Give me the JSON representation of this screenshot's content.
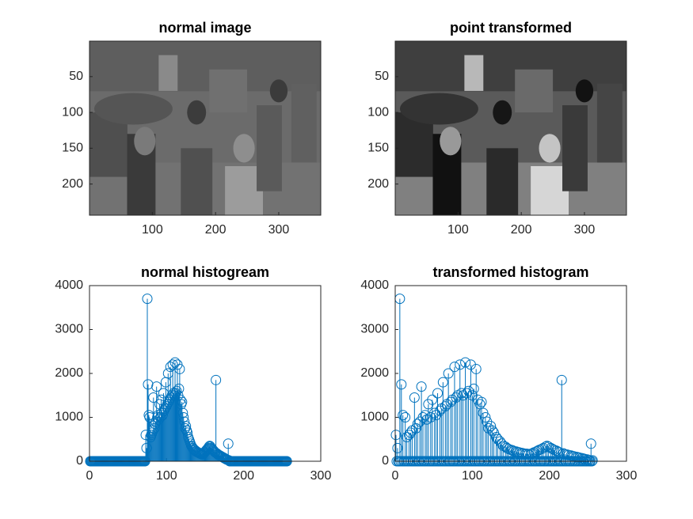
{
  "chart_data": [
    {
      "type": "image",
      "title": "normal image",
      "xlim": [
        0.5,
        366.5
      ],
      "ylim": [
        0.5,
        243.5
      ],
      "y_reversed": true,
      "xticks": [
        100,
        200,
        300
      ],
      "yticks": [
        50,
        100,
        150,
        200
      ],
      "contrast": "low"
    },
    {
      "type": "image",
      "title": "point transformed",
      "xlim": [
        0.5,
        366.5
      ],
      "ylim": [
        0.5,
        243.5
      ],
      "y_reversed": true,
      "xticks": [
        100,
        200,
        300
      ],
      "yticks": [
        50,
        100,
        150,
        200
      ],
      "contrast": "high"
    },
    {
      "type": "stem",
      "title": "normal histogream",
      "color": "#0072bd",
      "xlim": [
        0,
        300
      ],
      "ylim": [
        0,
        4000
      ],
      "xticks": [
        0,
        100,
        200,
        300
      ],
      "yticks": [
        0,
        1000,
        2000,
        3000,
        4000
      ],
      "x": [
        1,
        2,
        3,
        4,
        5,
        6,
        7,
        8,
        9,
        10,
        11,
        12,
        13,
        14,
        15,
        16,
        17,
        18,
        19,
        20,
        21,
        22,
        23,
        24,
        25,
        26,
        27,
        28,
        29,
        30,
        31,
        32,
        33,
        34,
        35,
        36,
        37,
        38,
        39,
        40,
        41,
        42,
        43,
        44,
        45,
        46,
        47,
        48,
        49,
        50,
        51,
        52,
        53,
        54,
        55,
        56,
        57,
        58,
        59,
        60,
        61,
        62,
        63,
        64,
        65,
        66,
        67,
        68,
        69,
        70,
        71,
        72,
        73,
        74,
        75,
        76,
        77,
        78,
        79,
        80,
        81,
        82,
        83,
        84,
        85,
        86,
        87,
        88,
        89,
        90,
        91,
        92,
        93,
        94,
        95,
        96,
        97,
        98,
        99,
        100,
        101,
        102,
        103,
        104,
        105,
        106,
        107,
        108,
        109,
        110,
        111,
        112,
        113,
        114,
        115,
        116,
        117,
        118,
        119,
        120,
        121,
        122,
        123,
        124,
        125,
        126,
        127,
        128,
        129,
        130,
        131,
        132,
        133,
        134,
        135,
        136,
        137,
        138,
        139,
        140,
        141,
        142,
        143,
        144,
        145,
        146,
        147,
        148,
        149,
        150,
        151,
        152,
        153,
        154,
        155,
        156,
        157,
        158,
        159,
        160,
        161,
        162,
        163,
        164,
        165,
        166,
        167,
        168,
        169,
        170,
        171,
        172,
        173,
        174,
        175,
        176,
        177,
        178,
        179,
        180,
        181,
        182,
        183,
        184,
        185,
        186,
        187,
        188,
        189,
        190,
        191,
        192,
        193,
        194,
        195,
        196,
        197,
        198,
        199,
        200,
        201,
        202,
        203,
        204,
        205,
        206,
        207,
        208,
        209,
        210,
        211,
        212,
        213,
        214,
        215,
        216,
        217,
        218,
        219,
        220,
        221,
        222,
        223,
        224,
        225,
        226,
        227,
        228,
        229,
        230,
        231,
        232,
        233,
        234,
        235,
        236,
        237,
        238,
        239,
        240,
        241,
        242,
        243,
        244,
        245,
        246,
        247,
        248,
        249,
        250,
        251,
        252,
        253,
        254,
        255,
        256
      ],
      "values": [
        0,
        0,
        0,
        0,
        0,
        0,
        0,
        0,
        0,
        0,
        0,
        0,
        0,
        0,
        0,
        0,
        0,
        0,
        0,
        0,
        0,
        0,
        0,
        0,
        0,
        0,
        0,
        0,
        0,
        0,
        0,
        0,
        0,
        0,
        0,
        0,
        0,
        0,
        0,
        0,
        0,
        0,
        0,
        0,
        0,
        0,
        0,
        0,
        0,
        0,
        0,
        0,
        0,
        0,
        0,
        0,
        0,
        0,
        0,
        0,
        0,
        0,
        0,
        0,
        0,
        0,
        0,
        0,
        0,
        0,
        0,
        0,
        600,
        300,
        3700,
        1750,
        1050,
        1000,
        550,
        600,
        650,
        700,
        1450,
        750,
        850,
        900,
        1700,
        1000,
        1050,
        950,
        1300,
        1000,
        1400,
        1100,
        1050,
        1550,
        1150,
        1200,
        1800,
        1250,
        1300,
        2000,
        1350,
        1400,
        2150,
        1450,
        1500,
        2200,
        1550,
        1500,
        2250,
        1550,
        1600,
        2200,
        1500,
        1650,
        2100,
        1400,
        1300,
        1350,
        1100,
        1000,
        900,
        750,
        800,
        700,
        650,
        550,
        500,
        450,
        400,
        350,
        330,
        300,
        280,
        260,
        250,
        230,
        220,
        210,
        200,
        190,
        180,
        170,
        170,
        160,
        170,
        180,
        200,
        220,
        240,
        260,
        280,
        300,
        330,
        350,
        330,
        300,
        280,
        260,
        240,
        220,
        200,
        1850,
        180,
        160,
        150,
        140,
        130,
        120,
        110,
        100,
        90,
        80,
        70,
        60,
        50,
        40,
        30,
        400,
        20,
        0,
        0,
        0,
        0,
        0,
        0,
        0,
        0,
        0,
        0,
        0,
        0,
        0,
        0,
        0,
        0,
        0,
        0,
        0,
        0,
        0,
        0,
        0,
        0,
        0,
        0,
        0,
        0,
        0,
        0,
        0,
        0,
        0,
        0,
        0,
        0,
        0,
        0,
        0,
        0,
        0,
        0,
        0,
        0,
        0,
        0,
        0,
        0,
        0,
        0,
        0,
        0,
        0,
        0,
        0,
        0,
        0,
        0,
        0,
        0,
        0,
        0,
        0,
        0,
        0,
        0,
        0,
        0,
        0,
        0,
        0,
        0,
        0,
        0,
        0
      ]
    },
    {
      "type": "stem",
      "title": "transformed histogram",
      "color": "#0072bd",
      "xlim": [
        0,
        300
      ],
      "ylim": [
        0,
        4000
      ],
      "xticks": [
        0,
        100,
        200,
        300
      ],
      "yticks": [
        0,
        1000,
        2000,
        3000,
        4000
      ],
      "x": [
        1,
        2,
        3,
        4,
        5,
        6,
        7,
        8,
        9,
        10,
        11,
        12,
        13,
        14,
        15,
        16,
        17,
        18,
        19,
        20,
        21,
        22,
        23,
        24,
        25,
        26,
        27,
        28,
        29,
        30,
        31,
        32,
        33,
        34,
        35,
        36,
        37,
        38,
        39,
        40,
        41,
        42,
        43,
        44,
        45,
        46,
        47,
        48,
        49,
        50,
        51,
        52,
        53,
        54,
        55,
        56,
        57,
        58,
        59,
        60,
        61,
        62,
        63,
        64,
        65,
        66,
        67,
        68,
        69,
        70,
        71,
        72,
        73,
        74,
        75,
        76,
        77,
        78,
        79,
        80,
        81,
        82,
        83,
        84,
        85,
        86,
        87,
        88,
        89,
        90,
        91,
        92,
        93,
        94,
        95,
        96,
        97,
        98,
        99,
        100,
        101,
        102,
        103,
        104,
        105,
        106,
        107,
        108,
        109,
        110,
        111,
        112,
        113,
        114,
        115,
        116,
        117,
        118,
        119,
        120,
        121,
        122,
        123,
        124,
        125,
        126,
        127,
        128,
        129,
        130,
        131,
        132,
        133,
        134,
        135,
        136,
        137,
        138,
        139,
        140,
        141,
        142,
        143,
        144,
        145,
        146,
        147,
        148,
        149,
        150,
        151,
        152,
        153,
        154,
        155,
        156,
        157,
        158,
        159,
        160,
        161,
        162,
        163,
        164,
        165,
        166,
        167,
        168,
        169,
        170,
        171,
        172,
        173,
        174,
        175,
        176,
        177,
        178,
        179,
        180,
        181,
        182,
        183,
        184,
        185,
        186,
        187,
        188,
        189,
        190,
        191,
        192,
        193,
        194,
        195,
        196,
        197,
        198,
        199,
        200,
        201,
        202,
        203,
        204,
        205,
        206,
        207,
        208,
        209,
        210,
        211,
        212,
        213,
        214,
        215,
        216,
        217,
        218,
        219,
        220,
        221,
        222,
        223,
        224,
        225,
        226,
        227,
        228,
        229,
        230,
        231,
        232,
        233,
        234,
        235,
        236,
        237,
        238,
        239,
        240,
        241,
        242,
        243,
        244,
        245,
        246,
        247,
        248,
        249,
        250,
        251,
        252,
        253,
        254,
        255,
        256
      ],
      "values": [
        600,
        0,
        300,
        0,
        0,
        3700,
        0,
        1750,
        0,
        1050,
        0,
        0,
        1000,
        0,
        550,
        0,
        0,
        600,
        0,
        650,
        0,
        700,
        0,
        0,
        1450,
        0,
        750,
        0,
        850,
        0,
        0,
        900,
        0,
        1700,
        0,
        1000,
        0,
        0,
        1050,
        0,
        950,
        0,
        1300,
        0,
        0,
        1000,
        0,
        1400,
        0,
        0,
        1100,
        0,
        1050,
        0,
        1550,
        0,
        0,
        1150,
        0,
        1200,
        0,
        1800,
        0,
        0,
        1250,
        0,
        1300,
        0,
        2000,
        0,
        0,
        1350,
        0,
        1400,
        0,
        0,
        2150,
        0,
        1450,
        0,
        1500,
        0,
        0,
        2200,
        0,
        1550,
        0,
        1500,
        0,
        0,
        2250,
        0,
        1550,
        0,
        1600,
        0,
        0,
        2200,
        0,
        1500,
        0,
        1650,
        0,
        0,
        2100,
        0,
        1400,
        0,
        0,
        1300,
        0,
        1350,
        0,
        1100,
        0,
        0,
        1000,
        0,
        900,
        0,
        750,
        0,
        0,
        800,
        0,
        700,
        0,
        650,
        0,
        0,
        550,
        0,
        500,
        0,
        0,
        450,
        0,
        400,
        0,
        350,
        0,
        0,
        330,
        0,
        300,
        0,
        280,
        0,
        0,
        260,
        0,
        250,
        0,
        230,
        0,
        0,
        220,
        0,
        210,
        0,
        200,
        0,
        0,
        190,
        0,
        180,
        0,
        0,
        170,
        0,
        170,
        0,
        160,
        0,
        0,
        170,
        0,
        180,
        0,
        200,
        0,
        0,
        220,
        0,
        240,
        0,
        260,
        0,
        0,
        280,
        0,
        300,
        0,
        0,
        330,
        0,
        350,
        0,
        330,
        0,
        0,
        300,
        0,
        280,
        0,
        260,
        0,
        0,
        240,
        0,
        220,
        0,
        200,
        0,
        0,
        1850,
        0,
        180,
        0,
        160,
        0,
        0,
        150,
        0,
        140,
        0,
        0,
        130,
        0,
        120,
        0,
        110,
        0,
        0,
        100,
        0,
        90,
        0,
        80,
        0,
        0,
        70,
        0,
        60,
        0,
        50,
        0,
        0,
        40,
        0,
        30,
        0,
        0,
        400,
        0,
        20
      ]
    }
  ]
}
